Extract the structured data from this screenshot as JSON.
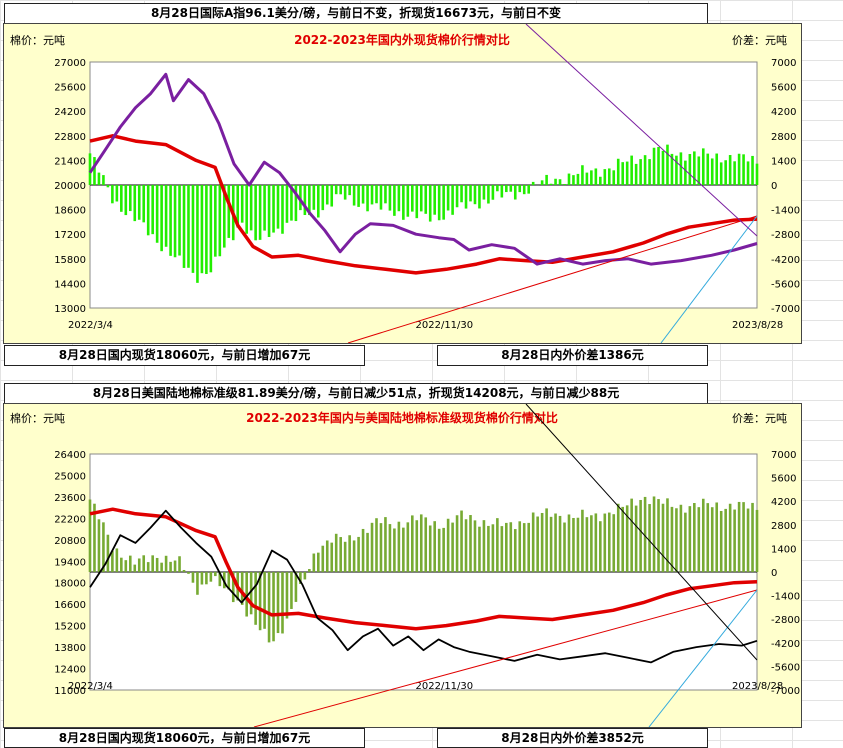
{
  "top_banner": "8月28日国际A指96.1美分/磅，与前日不变，折现货16673元，与前日不变",
  "chart1_footer_left": "8月28日国内现货18060元，与前日增加67元",
  "chart1_footer_right": "8月28日内外价差1386元",
  "middle_banner": "8月28日美国陆地棉标准级81.89美分/磅，与前日减少51点，折现货14208元，与前日减少88元",
  "chart2_footer_left": "8月28日国内现货18060元，与前日增加67元",
  "chart2_footer_right": "8月28日内外价差3852元",
  "colors": {
    "domestic": "#e00000",
    "intl_a": "#7a1fa0",
    "us": "#000000",
    "diff1": "#22ee00",
    "diff2": "#77aa33",
    "title": "#e00000"
  },
  "chart_data": [
    {
      "type": "line",
      "title": "2022-2023年国内外现货棉价行情对比",
      "ylabel_left": "棉价：元吨",
      "ylabel_right": "价差：元吨",
      "x_ticks": [
        "2022/3/4",
        "2022/11/30",
        "2023/8/28"
      ],
      "yleft_ticks": [
        "27000",
        "25600",
        "24200",
        "22800",
        "21400",
        "20000",
        "18600",
        "17200",
        "15800",
        "14400",
        "13000"
      ],
      "yright_ticks": [
        "7000",
        "5600",
        "4200",
        "2800",
        "1400",
        "0",
        "-1400",
        "-2800",
        "-4200",
        "-5600",
        "-7000"
      ],
      "ylim_left": [
        13000,
        27000
      ],
      "ylim_right": [
        -7000,
        7000
      ],
      "series": [
        {
          "name": "国内现货",
          "axis": "left",
          "style": "line",
          "points": [
            [
              0,
              22500
            ],
            [
              0.06,
              22800
            ],
            [
              0.12,
              22500
            ],
            [
              0.2,
              22300
            ],
            [
              0.28,
              21400
            ],
            [
              0.33,
              21000
            ],
            [
              0.36,
              19300
            ],
            [
              0.39,
              17700
            ],
            [
              0.43,
              16500
            ],
            [
              0.48,
              15900
            ],
            [
              0.55,
              16000
            ],
            [
              0.62,
              15700
            ],
            [
              0.7,
              15400
            ],
            [
              0.78,
              15200
            ],
            [
              0.86,
              15000
            ],
            [
              0.94,
              15200
            ],
            [
              1.02,
              15500
            ],
            [
              1.08,
              15800
            ],
            [
              1.15,
              15700
            ],
            [
              1.22,
              15600
            ],
            [
              1.3,
              15900
            ],
            [
              1.38,
              16200
            ],
            [
              1.46,
              16700
            ],
            [
              1.52,
              17200
            ],
            [
              1.58,
              17600
            ],
            [
              1.64,
              17800
            ],
            [
              1.7,
              18000
            ],
            [
              1.76,
              18060
            ]
          ]
        },
        {
          "name": "国际A指折现货",
          "axis": "left",
          "style": "line",
          "points": [
            [
              0,
              20700
            ],
            [
              0.04,
              22000
            ],
            [
              0.08,
              23300
            ],
            [
              0.12,
              24400
            ],
            [
              0.16,
              25200
            ],
            [
              0.2,
              26300
            ],
            [
              0.22,
              24800
            ],
            [
              0.26,
              26000
            ],
            [
              0.3,
              25200
            ],
            [
              0.34,
              23500
            ],
            [
              0.38,
              21200
            ],
            [
              0.42,
              20000
            ],
            [
              0.46,
              21300
            ],
            [
              0.5,
              20700
            ],
            [
              0.54,
              19600
            ],
            [
              0.58,
              18400
            ],
            [
              0.62,
              17400
            ],
            [
              0.66,
              16200
            ],
            [
              0.7,
              17200
            ],
            [
              0.74,
              17800
            ],
            [
              0.8,
              17700
            ],
            [
              0.86,
              17200
            ],
            [
              0.92,
              17000
            ],
            [
              0.96,
              16900
            ],
            [
              1.0,
              16300
            ],
            [
              1.06,
              16600
            ],
            [
              1.12,
              16400
            ],
            [
              1.18,
              15500
            ],
            [
              1.24,
              15800
            ],
            [
              1.3,
              15500
            ],
            [
              1.36,
              15700
            ],
            [
              1.42,
              15800
            ],
            [
              1.48,
              15500
            ],
            [
              1.56,
              15700
            ],
            [
              1.64,
              16000
            ],
            [
              1.7,
              16300
            ],
            [
              1.76,
              16673
            ]
          ]
        },
        {
          "name": "内外价差",
          "axis": "right",
          "style": "bar",
          "points": [
            [
              0,
              1800
            ],
            [
              0.06,
              -800
            ],
            [
              0.12,
              -2000
            ],
            [
              0.18,
              -3200
            ],
            [
              0.24,
              -4500
            ],
            [
              0.28,
              -5200
            ],
            [
              0.32,
              -4800
            ],
            [
              0.36,
              -3500
            ],
            [
              0.4,
              -2000
            ],
            [
              0.44,
              -3300
            ],
            [
              0.48,
              -2700
            ],
            [
              0.52,
              -2200
            ],
            [
              0.56,
              -1800
            ],
            [
              0.6,
              -1500
            ],
            [
              0.66,
              -700
            ],
            [
              0.72,
              -1100
            ],
            [
              0.78,
              -1400
            ],
            [
              0.84,
              -1700
            ],
            [
              0.9,
              -1900
            ],
            [
              0.96,
              -1500
            ],
            [
              1.02,
              -1000
            ],
            [
              1.08,
              -700
            ],
            [
              1.14,
              -400
            ],
            [
              1.2,
              200
            ],
            [
              1.26,
              500
            ],
            [
              1.32,
              800
            ],
            [
              1.38,
              1000
            ],
            [
              1.44,
              1500
            ],
            [
              1.5,
              2000
            ],
            [
              1.56,
              1800
            ],
            [
              1.62,
              1700
            ],
            [
              1.68,
              1600
            ],
            [
              1.76,
              1386
            ]
          ]
        }
      ]
    },
    {
      "type": "line",
      "title": "2022-2023年国内与美国陆地棉标准级现货棉价行情对比",
      "ylabel_left": "棉价：元吨",
      "ylabel_right": "价差：元吨",
      "x_ticks": [
        "2022/3/4",
        "2022/11/30",
        "2023/8/28"
      ],
      "yleft_ticks": [
        "26400",
        "25000",
        "23600",
        "22200",
        "20800",
        "19400",
        "18000",
        "16600",
        "15200",
        "13800",
        "12400",
        "11000"
      ],
      "yright_ticks": [
        "7000",
        "5600",
        "4200",
        "2800",
        "1400",
        "0",
        "-1400",
        "-2800",
        "-4200",
        "-5600",
        "-7000"
      ],
      "ylim_left": [
        11000,
        26400
      ],
      "ylim_right": [
        -7000,
        7000
      ],
      "series": [
        {
          "name": "国内现货",
          "axis": "left",
          "style": "line",
          "points": [
            [
              0,
              22500
            ],
            [
              0.06,
              22800
            ],
            [
              0.12,
              22500
            ],
            [
              0.2,
              22300
            ],
            [
              0.28,
              21400
            ],
            [
              0.33,
              21000
            ],
            [
              0.36,
              19300
            ],
            [
              0.39,
              17700
            ],
            [
              0.43,
              16500
            ],
            [
              0.48,
              15900
            ],
            [
              0.55,
              16000
            ],
            [
              0.62,
              15700
            ],
            [
              0.7,
              15400
            ],
            [
              0.78,
              15200
            ],
            [
              0.86,
              15000
            ],
            [
              0.94,
              15200
            ],
            [
              1.02,
              15500
            ],
            [
              1.08,
              15800
            ],
            [
              1.15,
              15700
            ],
            [
              1.22,
              15600
            ],
            [
              1.3,
              15900
            ],
            [
              1.38,
              16200
            ],
            [
              1.46,
              16700
            ],
            [
              1.52,
              17200
            ],
            [
              1.58,
              17600
            ],
            [
              1.64,
              17800
            ],
            [
              1.7,
              18000
            ],
            [
              1.76,
              18060
            ]
          ]
        },
        {
          "name": "美国陆地棉折现货",
          "axis": "left",
          "style": "line",
          "points": [
            [
              0,
              17700
            ],
            [
              0.04,
              19200
            ],
            [
              0.08,
              21100
            ],
            [
              0.12,
              20600
            ],
            [
              0.16,
              21600
            ],
            [
              0.2,
              22700
            ],
            [
              0.24,
              21600
            ],
            [
              0.28,
              20600
            ],
            [
              0.32,
              19700
            ],
            [
              0.36,
              17800
            ],
            [
              0.4,
              16700
            ],
            [
              0.44,
              17900
            ],
            [
              0.48,
              20100
            ],
            [
              0.52,
              19500
            ],
            [
              0.56,
              17900
            ],
            [
              0.6,
              15700
            ],
            [
              0.64,
              14900
            ],
            [
              0.68,
              13600
            ],
            [
              0.72,
              14500
            ],
            [
              0.76,
              15000
            ],
            [
              0.8,
              13900
            ],
            [
              0.84,
              14500
            ],
            [
              0.88,
              13600
            ],
            [
              0.92,
              14300
            ],
            [
              0.96,
              13800
            ],
            [
              1.0,
              13500
            ],
            [
              1.06,
              13200
            ],
            [
              1.12,
              12900
            ],
            [
              1.18,
              13300
            ],
            [
              1.24,
              13000
            ],
            [
              1.3,
              13200
            ],
            [
              1.36,
              13400
            ],
            [
              1.42,
              13100
            ],
            [
              1.48,
              12800
            ],
            [
              1.54,
              13500
            ],
            [
              1.6,
              13800
            ],
            [
              1.66,
              14000
            ],
            [
              1.72,
              13900
            ],
            [
              1.76,
              14208
            ]
          ]
        },
        {
          "name": "内外价差",
          "axis": "right",
          "style": "bar",
          "points": [
            [
              0,
              4300
            ],
            [
              0.06,
              1500
            ],
            [
              0.12,
              500
            ],
            [
              0.18,
              1000
            ],
            [
              0.24,
              500
            ],
            [
              0.28,
              -1000
            ],
            [
              0.32,
              -400
            ],
            [
              0.36,
              -1200
            ],
            [
              0.4,
              -1800
            ],
            [
              0.44,
              -3300
            ],
            [
              0.48,
              -4200
            ],
            [
              0.52,
              -2800
            ],
            [
              0.56,
              -900
            ],
            [
              0.6,
              1500
            ],
            [
              0.64,
              2000
            ],
            [
              0.68,
              1800
            ],
            [
              0.72,
              2500
            ],
            [
              0.76,
              3000
            ],
            [
              0.8,
              2800
            ],
            [
              0.86,
              3200
            ],
            [
              0.92,
              2800
            ],
            [
              0.98,
              3300
            ],
            [
              1.04,
              3000
            ],
            [
              1.1,
              2700
            ],
            [
              1.16,
              3200
            ],
            [
              1.22,
              3500
            ],
            [
              1.28,
              3200
            ],
            [
              1.34,
              3400
            ],
            [
              1.4,
              3700
            ],
            [
              1.46,
              4500
            ],
            [
              1.52,
              4000
            ],
            [
              1.58,
              3900
            ],
            [
              1.64,
              4000
            ],
            [
              1.7,
              3900
            ],
            [
              1.76,
              3852
            ]
          ]
        }
      ]
    }
  ]
}
